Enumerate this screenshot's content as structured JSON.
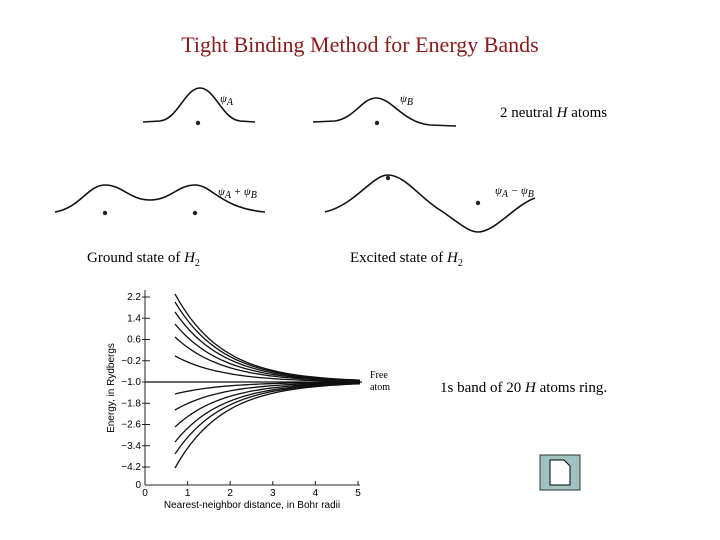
{
  "title": "Tight Binding Method for Energy Bands",
  "wavefunctions": {
    "psi_a": {
      "symbol": "ψ",
      "sub": "A"
    },
    "psi_b": {
      "symbol": "ψ",
      "sub": "B"
    },
    "sum": {
      "symbol1": "ψ",
      "sub1": "A",
      "op": " + ",
      "symbol2": "ψ",
      "sub2": "B"
    },
    "difference": {
      "symbol1": "ψ",
      "sub1": "A",
      "op": " − ",
      "symbol2": "ψ",
      "sub2": "B"
    }
  },
  "labels": {
    "neutral": {
      "pre": "2 neutral ",
      "atom": "H",
      "post": " atoms"
    },
    "ground": {
      "pre": "Ground state of ",
      "atom": "H",
      "sub": "2"
    },
    "excited": {
      "pre": "Excited state of ",
      "atom": "H",
      "sub": "2"
    },
    "band": {
      "pre": "1s band of 20 ",
      "atom": "H",
      "post": " atoms ring."
    }
  },
  "plot": {
    "y_label": "Energy, in Rydbergs",
    "x_label": "Nearest-neighbor distance, in Bohr radii",
    "y_ticks": [
      "2.2",
      "1.4",
      "0.6",
      "−0.2",
      "−1.0",
      "−1.8",
      "−2.6",
      "−3.4",
      "−4.2"
    ],
    "corner": "0",
    "x_ticks": [
      "0",
      "1",
      "2",
      "3",
      "4",
      "5"
    ],
    "free_atom": [
      "Free",
      "atom"
    ]
  }
}
